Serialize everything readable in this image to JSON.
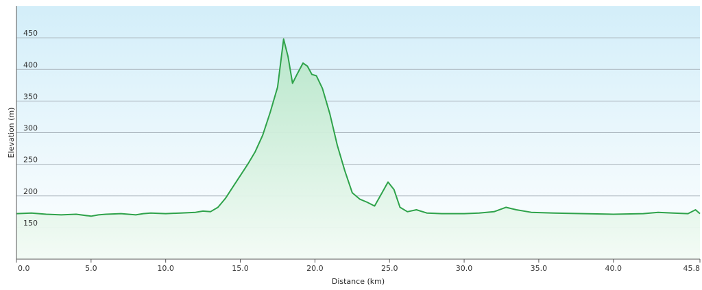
{
  "chart_data": {
    "type": "area",
    "title": "",
    "xlabel": "Distance  (km)",
    "ylabel": "Elevation (m)",
    "xlim": [
      0,
      45.8
    ],
    "ylim": [
      100,
      500
    ],
    "x_ticks": [
      0.0,
      5.0,
      10.0,
      15.0,
      20.0,
      25.0,
      30.0,
      35.0,
      40.0,
      45.8
    ],
    "x_tick_labels": [
      "0.0",
      "5.0",
      "10.0",
      "15.0",
      "20.0",
      "25.0",
      "30.0",
      "35.0",
      "40.0",
      "45.8"
    ],
    "y_ticks": [
      150,
      200,
      250,
      300,
      350,
      400,
      450
    ],
    "y_tick_labels": [
      "150",
      "200",
      "250",
      "300",
      "350",
      "400",
      "450"
    ],
    "grid": true,
    "series": [
      {
        "x": [
          0,
          1,
          2,
          3,
          4,
          5,
          5.5,
          6,
          7,
          8,
          8.5,
          9,
          10,
          11,
          12,
          12.5,
          13,
          13.5,
          14,
          14.5,
          15,
          15.5,
          16,
          16.5,
          17,
          17.5,
          17.9,
          18.2,
          18.5,
          18.8,
          19.2,
          19.5,
          19.8,
          20.1,
          20.5,
          21,
          21.5,
          22,
          22.5,
          23,
          23.5,
          24,
          24.5,
          24.9,
          25.3,
          25.7,
          26.2,
          26.8,
          27.5,
          28.5,
          30,
          31,
          32,
          32.8,
          33.5,
          34.5,
          36,
          38,
          40,
          42,
          43,
          44,
          45,
          45.5,
          45.8
        ],
        "values": [
          172,
          173,
          171,
          170,
          171,
          168,
          170,
          171,
          172,
          170,
          172,
          173,
          172,
          173,
          174,
          176,
          175,
          182,
          196,
          214,
          232,
          250,
          270,
          296,
          332,
          372,
          448,
          420,
          378,
          392,
          410,
          405,
          392,
          390,
          370,
          330,
          280,
          240,
          205,
          195,
          190,
          184,
          205,
          222,
          210,
          182,
          175,
          178,
          173,
          172,
          172,
          173,
          175,
          182,
          178,
          174,
          173,
          172,
          171,
          172,
          174,
          173,
          172,
          178,
          172
        ]
      }
    ],
    "colors": {
      "line": "#2ea24a",
      "fill_top": "#b6e6c8",
      "fill_bottom": "#f3fbf5",
      "bg_top": "#d3eef9",
      "bg_bottom": "#ffffff",
      "grid": "#a9b3bb",
      "axis": "#555555"
    }
  }
}
